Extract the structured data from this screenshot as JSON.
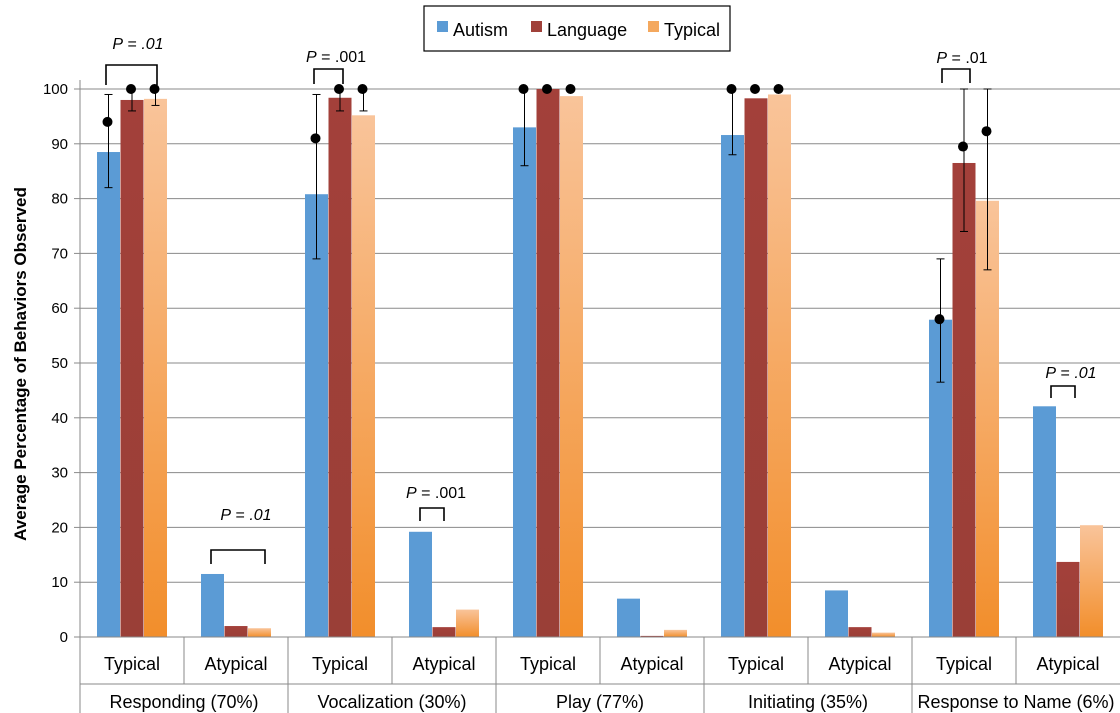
{
  "chart_data": {
    "type": "bar",
    "ylabel": "Average Percentage of Behaviors  Observed",
    "ylim": [
      0,
      100
    ],
    "yticks": [
      0,
      10,
      20,
      30,
      40,
      50,
      60,
      70,
      80,
      90,
      100
    ],
    "grid": true,
    "legend_position": "top-center",
    "series_colors": {
      "Autism": "#5b9bd5",
      "Language": "#a0413a",
      "Typical": "#f4a85e"
    },
    "groups": [
      {
        "label": "Responding (70%)",
        "subgroups": [
          {
            "label": "Typical",
            "values": {
              "Autism": 88.5,
              "Language": 98,
              "Typical": 98.2
            },
            "errors": {
              "Autism": [
                82,
                99
              ],
              "Language": [
                96,
                100
              ],
              "Typical": [
                97,
                100
              ]
            },
            "points": {
              "Autism": 94,
              "Language": 100,
              "Typical": 100
            }
          },
          {
            "label": "Atypical",
            "values": {
              "Autism": 11.5,
              "Language": 2,
              "Typical": 1.6
            }
          }
        ]
      },
      {
        "label": "Vocalization (30%)",
        "subgroups": [
          {
            "label": "Typical",
            "values": {
              "Autism": 80.8,
              "Language": 98.4,
              "Typical": 95.2
            },
            "errors": {
              "Autism": [
                69,
                99
              ],
              "Language": [
                96,
                100
              ],
              "Typical": [
                96,
                100
              ]
            },
            "points": {
              "Autism": 91,
              "Language": 100,
              "Typical": 100
            }
          },
          {
            "label": "Atypical",
            "values": {
              "Autism": 19.2,
              "Language": 1.8,
              "Typical": 5
            }
          }
        ]
      },
      {
        "label": "Play (77%)",
        "subgroups": [
          {
            "label": "Typical",
            "values": {
              "Autism": 93,
              "Language": 100,
              "Typical": 98.7
            },
            "errors": {
              "Autism": [
                86,
                100
              ]
            },
            "points": {
              "Autism": 100,
              "Language": 100,
              "Typical": 100
            }
          },
          {
            "label": "Atypical",
            "values": {
              "Autism": 7,
              "Language": 0.2,
              "Typical": 1.3
            }
          }
        ]
      },
      {
        "label": "Initiating (35%)",
        "subgroups": [
          {
            "label": "Typical",
            "values": {
              "Autism": 91.6,
              "Language": 98.3,
              "Typical": 99
            },
            "errors": {
              "Autism": [
                88,
                100
              ]
            },
            "points": {
              "Autism": 100,
              "Language": 100,
              "Typical": 100
            }
          },
          {
            "label": "Atypical",
            "values": {
              "Autism": 8.5,
              "Language": 1.8,
              "Typical": 0.8
            }
          }
        ]
      },
      {
        "label": "Response to Name (6%)",
        "subgroups": [
          {
            "label": "Typical",
            "values": {
              "Autism": 57.9,
              "Language": 86.5,
              "Typical": 79.6
            },
            "errors": {
              "Autism": [
                46.5,
                69
              ],
              "Language": [
                74,
                100
              ],
              "Typical": [
                67,
                100
              ]
            },
            "points": {
              "Autism": 58,
              "Language": 89.5,
              "Typical": 92.3
            }
          },
          {
            "label": "Atypical",
            "values": {
              "Autism": 42.1,
              "Language": 13.7,
              "Typical": 20.4
            }
          }
        ]
      }
    ],
    "annotations": [
      {
        "text": "P = .01",
        "italic_p": true,
        "italic_value": true
      },
      {
        "text": "P = .01",
        "italic_p": true,
        "italic_value": true
      },
      {
        "text": "P = .001",
        "italic_p": true,
        "italic_value": false
      },
      {
        "text": "P = .001",
        "italic_p": true,
        "italic_value": false
      },
      {
        "text": "P = .01",
        "italic_p": true,
        "italic_value": false
      },
      {
        "text": "P = .01",
        "italic_p": true,
        "italic_value": true
      }
    ]
  }
}
